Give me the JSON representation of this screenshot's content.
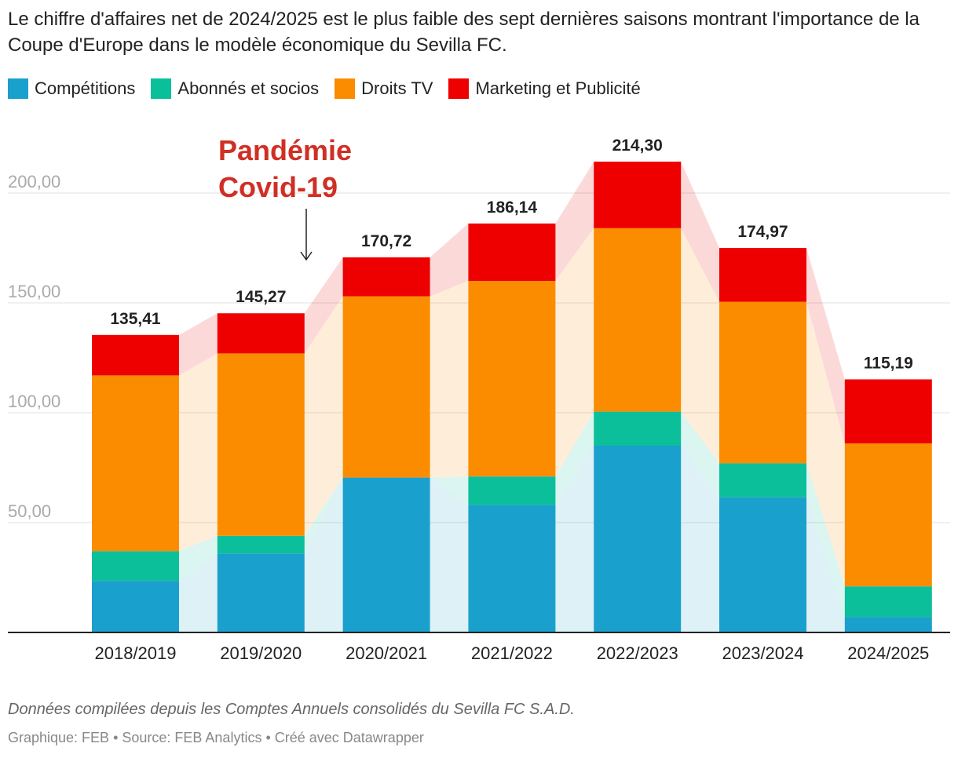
{
  "title": "Le chiffre d'affaires net de 2024/2025 est le plus faible des sept dernières saisons montrant l'importance de la Coupe d'Europe dans le modèle économique du Sevilla FC.",
  "legend": [
    {
      "label": "Compétitions",
      "color": "#1aa0cc"
    },
    {
      "label": "Abonnés et socios",
      "color": "#0bbf9b"
    },
    {
      "label": "Droits TV",
      "color": "#fb8c00"
    },
    {
      "label": "Marketing et Publicité",
      "color": "#ee0000"
    }
  ],
  "annotation": {
    "line1": "Pandémie",
    "line2": "Covid-19",
    "color": "#d02f25",
    "arrow": "↓"
  },
  "chart_data": {
    "type": "bar",
    "stacked": true,
    "categories": [
      "2018/2019",
      "2019/2020",
      "2020/2021",
      "2021/2022",
      "2022/2023",
      "2023/2024",
      "2024/2025"
    ],
    "series": [
      {
        "name": "Compétitions",
        "color": "#1aa0cc",
        "values": [
          23.5,
          36,
          70.5,
          58,
          85,
          61.5,
          7
        ]
      },
      {
        "name": "Abonnés et socios",
        "color": "#0bbf9b",
        "values": [
          13.5,
          8,
          0,
          13,
          15.5,
          15.5,
          14
        ]
      },
      {
        "name": "Droits TV",
        "color": "#fb8c00",
        "values": [
          80,
          83,
          82.5,
          89,
          83.5,
          73.5,
          65
        ]
      },
      {
        "name": "Marketing et Publicité",
        "color": "#ee0000",
        "values": [
          18.41,
          18.27,
          17.72,
          26.14,
          30.3,
          24.47,
          29.19
        ]
      }
    ],
    "totals": [
      "135,41",
      "145,27",
      "170,72",
      "186,14",
      "214,30",
      "174,97",
      "115,19"
    ],
    "yticks": [
      {
        "value": 50,
        "label": "50,00"
      },
      {
        "value": 100,
        "label": "100,00"
      },
      {
        "value": 150,
        "label": "150,00"
      },
      {
        "value": 200,
        "label": "200,00"
      }
    ],
    "ylim": [
      0,
      230
    ],
    "grid": true,
    "legend_position": "top-left"
  },
  "footer": {
    "note": "Données compilées depuis les Comptes Annuels consolidés du Sevilla FC S.A.D.",
    "byline": "Graphique: FEB • Source: FEB Analytics • Créé avec Datawrapper"
  }
}
